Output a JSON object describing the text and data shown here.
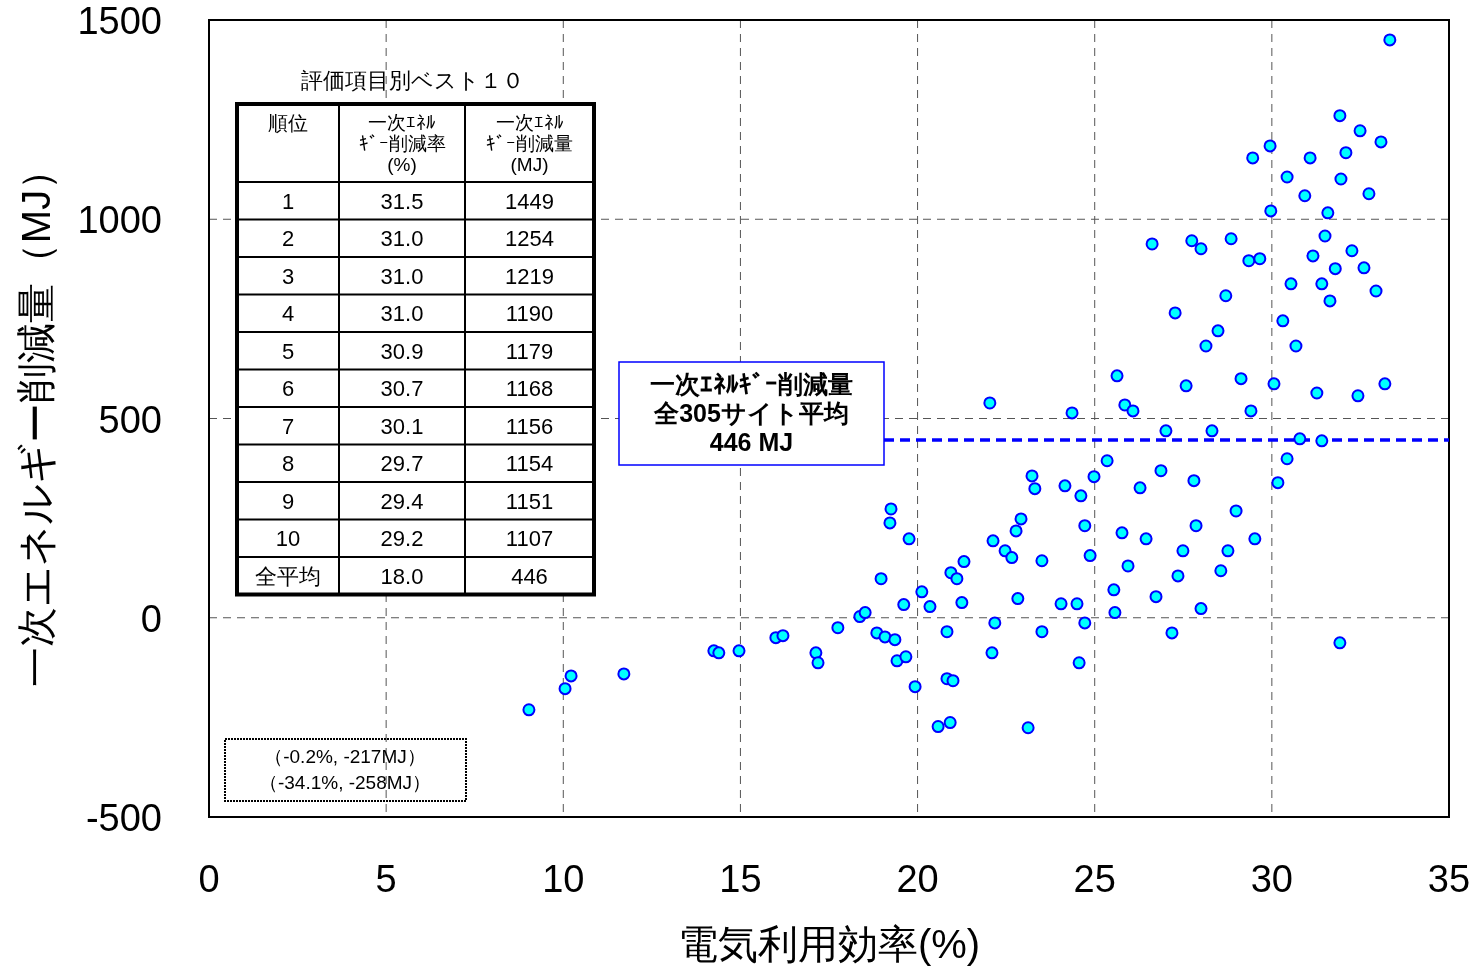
{
  "chart_data": {
    "type": "scatter",
    "xlabel": "電気利用効率(%)",
    "ylabel": "一次エネルギー削減量（MJ）",
    "xlim": [
      0,
      35
    ],
    "xticks": [
      0,
      5,
      10,
      15,
      20,
      25,
      30,
      35
    ],
    "ylim": [
      -500,
      1500
    ],
    "yticks": [
      -500,
      0,
      500,
      1000,
      1500
    ],
    "grid": true,
    "marker": "circle",
    "ref_lines": [
      {
        "axis": "y",
        "value": 446,
        "color": "#0000ff",
        "line_style": "dashed"
      }
    ],
    "annotations": [
      "評価項目別ベスト１０",
      "順位",
      "一次ｴﾈﾙ",
      "ｷﾞｰ削減率",
      "(%)",
      "一次ｴﾈﾙ",
      "ｷﾞｰ削減量",
      "(MJ)",
      "1",
      "31.5",
      "1449",
      "2",
      "31.0",
      "1254",
      "3",
      "31.0",
      "1219",
      "4",
      "31.0",
      "1190",
      "5",
      "30.9",
      "1179",
      "6",
      "30.7",
      "1168",
      "7",
      "30.1",
      "1156",
      "8",
      "29.7",
      "1154",
      "9",
      "29.4",
      "1151",
      "10",
      "29.2",
      "1107",
      "全平均",
      "18.0",
      "446",
      "一次ｴﾈﾙｷﾞｰ削減量",
      "全305サイト平均",
      "446 MJ",
      "（-0.2%, -217MJ）",
      "（-34.1%, -258MJ）"
    ],
    "series": [
      {
        "color": "#00ffff",
        "x": [
          33.33,
          9.03,
          10.05,
          10.22,
          11.71,
          14.25,
          14.39,
          14.96,
          16.0,
          16.2,
          17.13,
          17.19,
          17.75,
          18.37,
          18.52,
          18.85,
          18.97,
          19.08,
          19.22,
          19.25,
          19.36,
          19.42,
          19.61,
          19.67,
          19.76,
          19.93,
          20.12,
          20.35,
          20.58,
          20.83,
          20.94,
          20.83,
          21.0,
          20.92,
          21.11,
          21.25,
          21.31,
          22.04,
          22.13,
          22.1,
          22.18,
          22.47,
          22.66,
          22.78,
          22.83,
          22.92,
          23.12,
          23.23,
          23.31,
          23.51,
          23.51,
          24.05,
          24.16,
          24.36,
          24.5,
          24.56,
          24.61,
          24.72,
          24.72,
          24.87,
          24.98,
          25.35,
          25.54,
          25.63,
          25.57,
          25.77,
          25.85,
          25.94,
          26.08,
          26.28,
          26.45,
          26.62,
          26.73,
          26.87,
          27.01,
          27.18,
          27.27,
          27.35,
          27.49,
          27.58,
          27.74,
          27.8,
          27.86,
          28.0,
          28.0,
          28.14,
          28.31,
          28.48,
          28.56,
          28.7,
          28.76,
          28.85,
          28.99,
          29.13,
          29.35,
          29.41,
          29.46,
          29.52,
          29.66,
          29.95,
          29.97,
          30.06,
          30.17,
          30.31,
          30.43,
          30.43,
          30.54,
          30.68,
          30.79,
          30.93,
          31.08,
          31.16,
          31.27,
          31.41,
          31.41,
          31.5,
          31.58,
          31.64,
          31.79,
          31.92,
          31.92,
          31.95,
          32.09,
          32.26,
          32.43,
          32.49,
          32.6,
          32.74,
          32.94,
          33.08,
          33.19
        ],
        "values": [
          1450,
          -231,
          -178,
          -146,
          -141,
          -83,
          -88,
          -83,
          -50,
          -45,
          -88,
          -113,
          -25,
          3,
          13,
          -38,
          98,
          -48,
          238,
          273,
          -55,
          -108,
          33,
          -98,
          198,
          -173,
          65,
          28,
          -273,
          -35,
          113,
          -153,
          -158,
          -263,
          98,
          38,
          141,
          539,
          193,
          -88,
          -13,
          168,
          151,
          218,
          48,
          248,
          -276,
          356,
          324,
          -35,
          143,
          35,
          331,
          514,
          35,
          -113,
          306,
          231,
          -13,
          156,
          354,
          394,
          70,
          607,
          13,
          213,
          534,
          130,
          519,
          326,
          198,
          938,
          53,
          369,
          469,
          -38,
          765,
          105,
          168,
          582,
          946,
          344,
          231,
          926,
          23,
          682,
          469,
          720,
          118,
          808,
          168,
          951,
          268,
          600,
          896,
          519,
          1154,
          198,
          901,
          1184,
          1021,
          587,
          339,
          745,
          1106,
          399,
          838,
          682,
          449,
          1059,
          1154,
          908,
          564,
          838,
          444,
          958,
          1016,
          795,
          876,
          1260,
          -63,
          1101,
          1167,
          921,
          557,
          1222,
          878,
          1064,
          820,
          1194,
          587
        ]
      }
    ]
  }
}
